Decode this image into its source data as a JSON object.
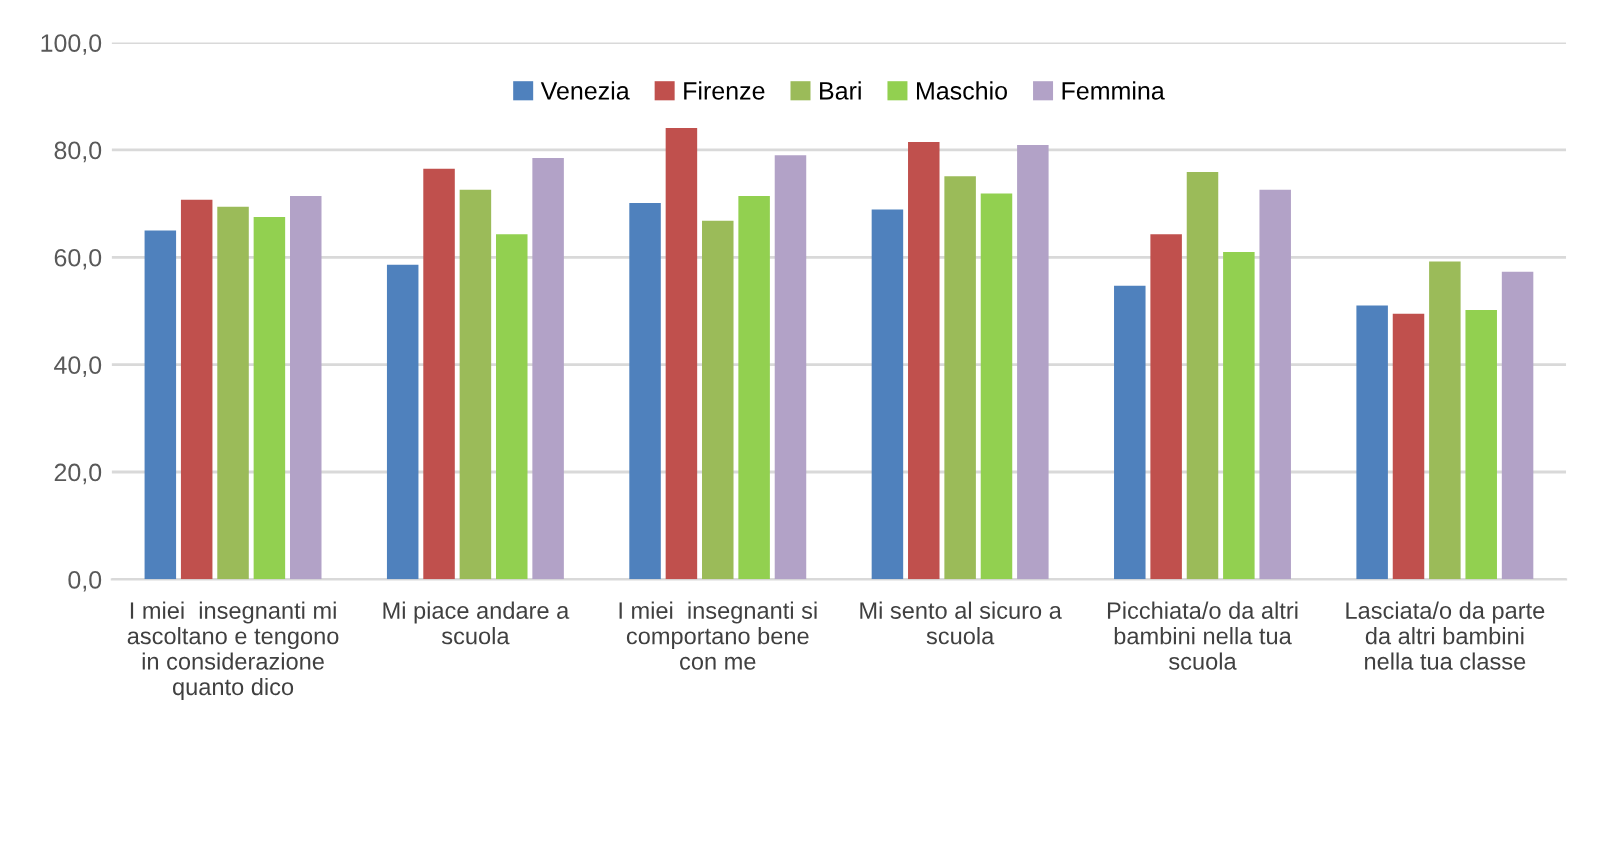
{
  "chart_data": {
    "type": "bar",
    "categories": [
      "I miei  insegnanti mi\nascoltano e tengono\nin considerazione\nquanto dico",
      "Mi piace andare a\nscuola",
      "I miei  insegnanti si\ncomportano bene\ncon me",
      "Mi sento al sicuro a\nscuola",
      "Picchiata/o da altri\nbambini nella tua\nscuola",
      "Lasciata/o da parte\nda altri bambini\nnella tua classe"
    ],
    "series": [
      {
        "name": "Venezia",
        "color": "#4f81bd",
        "values": [
          65.0,
          58.6,
          70.1,
          68.9,
          54.7,
          51.0
        ]
      },
      {
        "name": "Firenze",
        "color": "#c0504d",
        "values": [
          70.7,
          76.5,
          84.1,
          81.5,
          64.3,
          49.5
        ]
      },
      {
        "name": "Bari",
        "color": "#9bbb59",
        "values": [
          69.4,
          72.6,
          66.8,
          75.1,
          75.9,
          59.2
        ]
      },
      {
        "name": "Maschio",
        "color": "#92d050",
        "values": [
          67.5,
          64.3,
          71.4,
          71.9,
          61.0,
          50.2
        ]
      },
      {
        "name": "Femmina",
        "color": "#b2a2c7",
        "values": [
          71.4,
          78.5,
          79.0,
          80.9,
          72.6,
          57.3
        ]
      }
    ],
    "ylim": [
      0,
      100
    ],
    "yticks": [
      {
        "value": 0,
        "label": "0,0"
      },
      {
        "value": 20,
        "label": "20,0"
      },
      {
        "value": 40,
        "label": "40,0"
      },
      {
        "value": 60,
        "label": "60,0"
      },
      {
        "value": 80,
        "label": "80,0"
      },
      {
        "value": 100,
        "label": "100,0"
      }
    ],
    "grid": "y",
    "legend": "top"
  }
}
